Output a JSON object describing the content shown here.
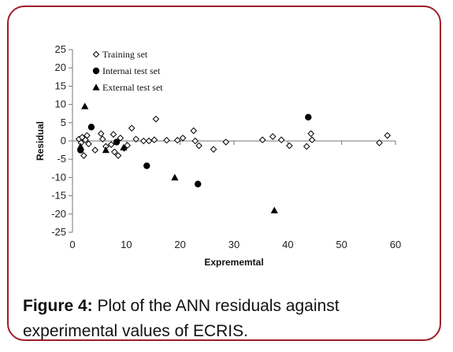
{
  "chart_data": {
    "type": "scatter",
    "title": "",
    "xlabel": "Exprememtal",
    "ylabel": "Residual",
    "xlim": [
      0,
      60
    ],
    "ylim": [
      -25,
      25
    ],
    "x_ticks": [
      0,
      10,
      20,
      30,
      40,
      50,
      60
    ],
    "y_ticks": [
      25,
      20,
      15,
      10,
      5,
      0,
      -5,
      -10,
      -15,
      -20,
      -25
    ],
    "grid": false,
    "legend_position": "top-left",
    "series": [
      {
        "name": "Training set",
        "marker": "diamond-open",
        "color": "#000000",
        "points": [
          [
            1.2,
            0.5
          ],
          [
            1.6,
            -0.5
          ],
          [
            1.8,
            1.0
          ],
          [
            2.1,
            -4.0
          ],
          [
            2.4,
            0.3
          ],
          [
            2.7,
            1.5
          ],
          [
            3.0,
            -0.8
          ],
          [
            4.2,
            -2.5
          ],
          [
            5.3,
            2.0
          ],
          [
            5.6,
            0.5
          ],
          [
            6.2,
            -1.5
          ],
          [
            7.2,
            -1.0
          ],
          [
            7.6,
            1.8
          ],
          [
            7.8,
            -3.0
          ],
          [
            8.5,
            -4.0
          ],
          [
            8.9,
            0.8
          ],
          [
            9.6,
            -2.0
          ],
          [
            10.2,
            -1.2
          ],
          [
            11.0,
            3.5
          ],
          [
            11.8,
            0.5
          ],
          [
            13.2,
            0.0
          ],
          [
            14.2,
            0.0
          ],
          [
            15.2,
            0.3
          ],
          [
            15.5,
            6.0
          ],
          [
            17.5,
            0.2
          ],
          [
            19.5,
            0.2
          ],
          [
            20.5,
            0.8
          ],
          [
            22.5,
            2.8
          ],
          [
            22.8,
            0.0
          ],
          [
            23.5,
            -1.3
          ],
          [
            26.2,
            -2.3
          ],
          [
            28.5,
            -0.3
          ],
          [
            35.3,
            0.3
          ],
          [
            37.2,
            1.2
          ],
          [
            38.8,
            0.3
          ],
          [
            40.3,
            -1.3
          ],
          [
            43.5,
            -1.5
          ],
          [
            44.3,
            2.0
          ],
          [
            44.5,
            0.3
          ],
          [
            57.0,
            -0.5
          ],
          [
            58.5,
            1.5
          ]
        ]
      },
      {
        "name": "Internai test set",
        "marker": "circle-filled",
        "color": "#000000",
        "points": [
          [
            1.5,
            -2.5
          ],
          [
            3.5,
            3.8
          ],
          [
            8.2,
            -0.3
          ],
          [
            13.8,
            -6.8
          ],
          [
            23.3,
            -11.8
          ],
          [
            43.8,
            6.5
          ]
        ]
      },
      {
        "name": "External test set",
        "marker": "triangle-filled",
        "color": "#000000",
        "points": [
          [
            1.5,
            -1.5
          ],
          [
            2.3,
            9.5
          ],
          [
            6.2,
            -2.5
          ],
          [
            9.5,
            -1.8
          ],
          [
            19.0,
            -10.0
          ],
          [
            37.5,
            -19.0
          ]
        ]
      }
    ]
  },
  "caption": {
    "label": "Figure 4:",
    "text": " Plot of the ANN residuals against experimental values of ECRIS."
  },
  "colors": {
    "frame_border": "#a01d26"
  }
}
